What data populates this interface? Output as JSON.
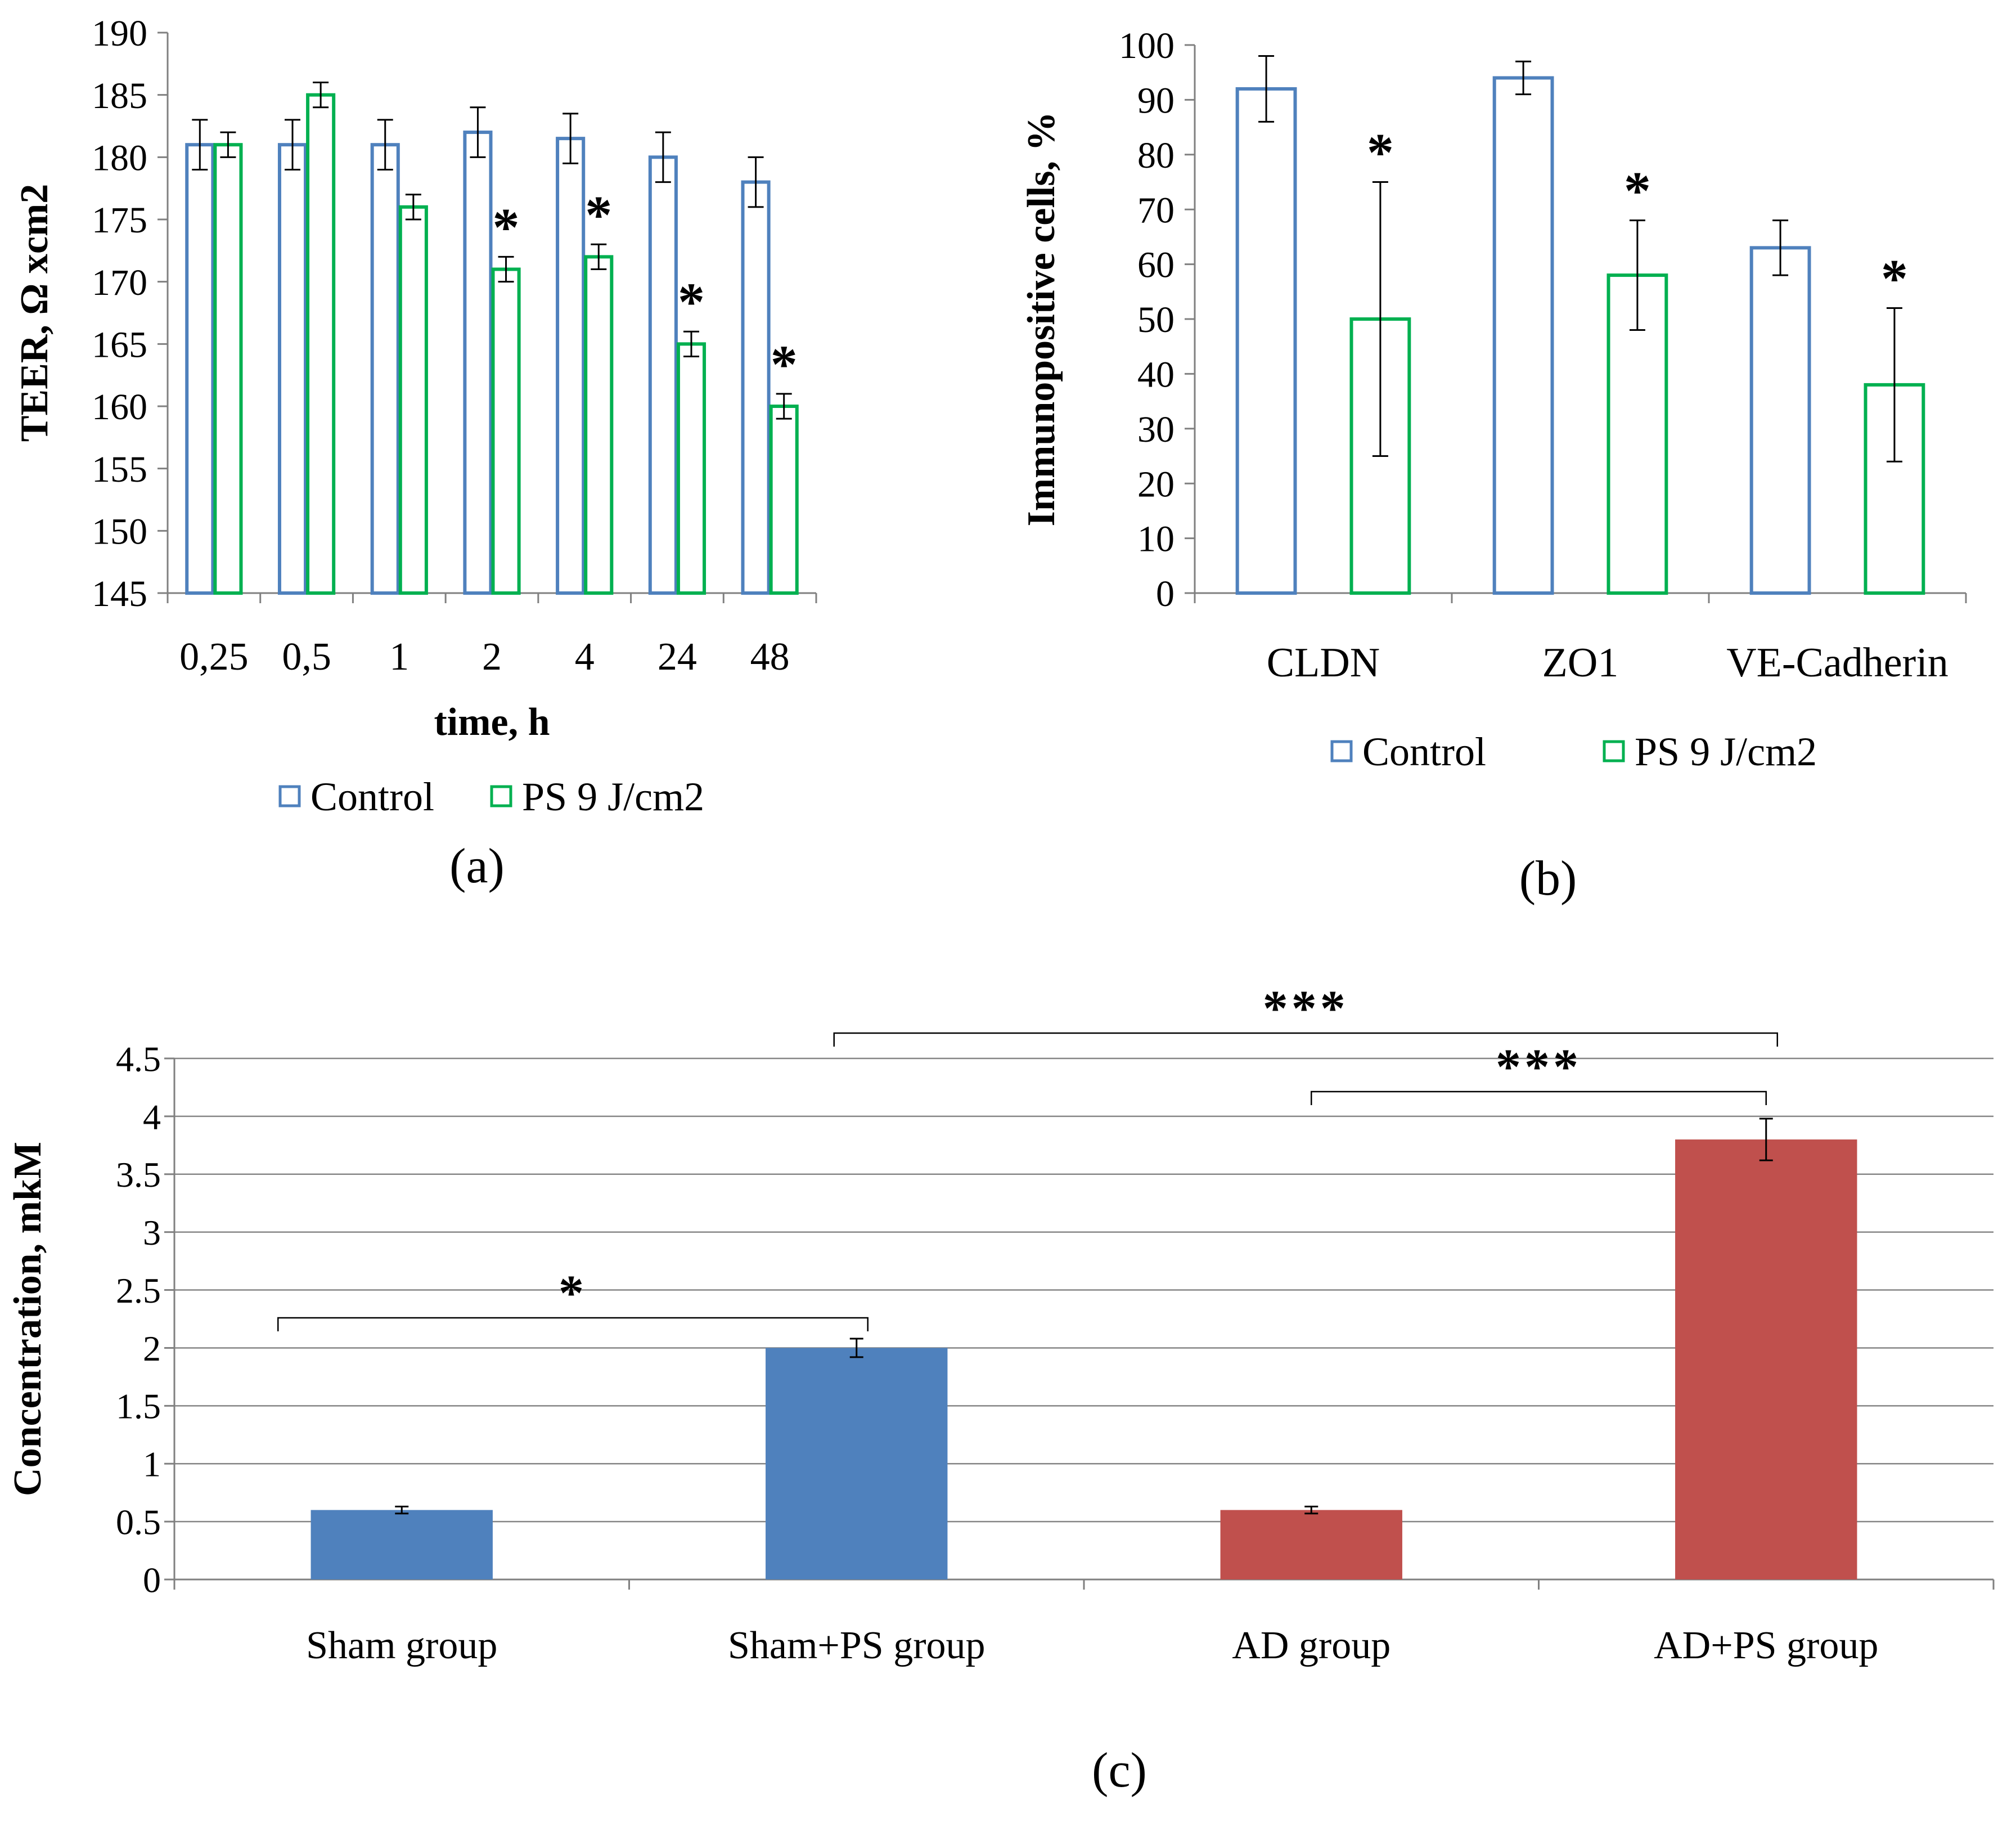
{
  "chart_data": [
    {
      "id": "a",
      "type": "bar",
      "panel_label": "(a)",
      "title": "",
      "xlabel": "time,  h",
      "ylabel": "TEER, Ω xcm2",
      "ylim": [
        145,
        190
      ],
      "yticks": [
        145,
        150,
        155,
        160,
        165,
        170,
        175,
        180,
        185,
        190
      ],
      "grid": false,
      "bar_style": "outline",
      "legend_position": "bottom",
      "categories": [
        "0,25",
        "0,5",
        "1",
        "2",
        "4",
        "24",
        "48"
      ],
      "series": [
        {
          "name": "Control",
          "color": "#4F81BD",
          "values": [
            181,
            181,
            181,
            182,
            181.5,
            180,
            178
          ],
          "errors": [
            2,
            2,
            2,
            2,
            2,
            2,
            2
          ]
        },
        {
          "name": "PS 9 J/cm2",
          "color": "#00B050",
          "values": [
            181,
            185,
            176,
            171,
            172,
            165,
            160
          ],
          "errors": [
            1,
            1,
            1,
            1,
            1,
            1,
            1
          ]
        }
      ],
      "significance": [
        {
          "series": 1,
          "index": 3,
          "label": "*"
        },
        {
          "series": 1,
          "index": 4,
          "label": "*"
        },
        {
          "series": 1,
          "index": 5,
          "label": "*"
        },
        {
          "series": 1,
          "index": 6,
          "label": "*"
        }
      ]
    },
    {
      "id": "b",
      "type": "bar",
      "panel_label": "(b)",
      "title": "",
      "xlabel": "",
      "ylabel": "Immunopositive cells, %",
      "ylim": [
        0,
        100
      ],
      "yticks": [
        0,
        10,
        20,
        30,
        40,
        50,
        60,
        70,
        80,
        90,
        100
      ],
      "grid": false,
      "bar_style": "outline",
      "legend_position": "bottom",
      "categories": [
        "CLDN",
        "ZO1",
        "VE-Cadherin"
      ],
      "series": [
        {
          "name": "Control",
          "color": "#4F81BD",
          "values": [
            92,
            94,
            63
          ],
          "errors": [
            6,
            3,
            5
          ]
        },
        {
          "name": "PS 9 J/cm2",
          "color": "#00B050",
          "values": [
            50,
            58,
            38
          ],
          "errors": [
            25,
            10,
            14
          ]
        }
      ],
      "significance": [
        {
          "series": 1,
          "index": 0,
          "label": "*"
        },
        {
          "series": 1,
          "index": 1,
          "label": "*"
        },
        {
          "series": 1,
          "index": 2,
          "label": "*"
        }
      ]
    },
    {
      "id": "c",
      "type": "bar",
      "panel_label": "(c)",
      "title": "",
      "xlabel": "",
      "ylabel": "Concentration, mkM",
      "ylim": [
        0,
        4.5
      ],
      "yticks": [
        0,
        0.5,
        1,
        1.5,
        2,
        2.5,
        3,
        3.5,
        4,
        4.5
      ],
      "grid": true,
      "bar_style": "filled",
      "legend_position": "none",
      "categories": [
        "Sham group",
        "Sham+PS group",
        "AD group",
        "AD+PS group"
      ],
      "values": [
        0.6,
        2.0,
        0.6,
        3.8
      ],
      "errors": [
        0.03,
        0.08,
        0.03,
        0.18
      ],
      "colors": [
        "#4F81BD",
        "#4F81BD",
        "#C0504D",
        "#C0504D"
      ],
      "brackets": [
        {
          "from": 0,
          "to": 1,
          "label": "*"
        },
        {
          "from": 1,
          "to": 3,
          "label": "***"
        },
        {
          "from": 2,
          "to": 3,
          "label": "***"
        }
      ]
    }
  ]
}
